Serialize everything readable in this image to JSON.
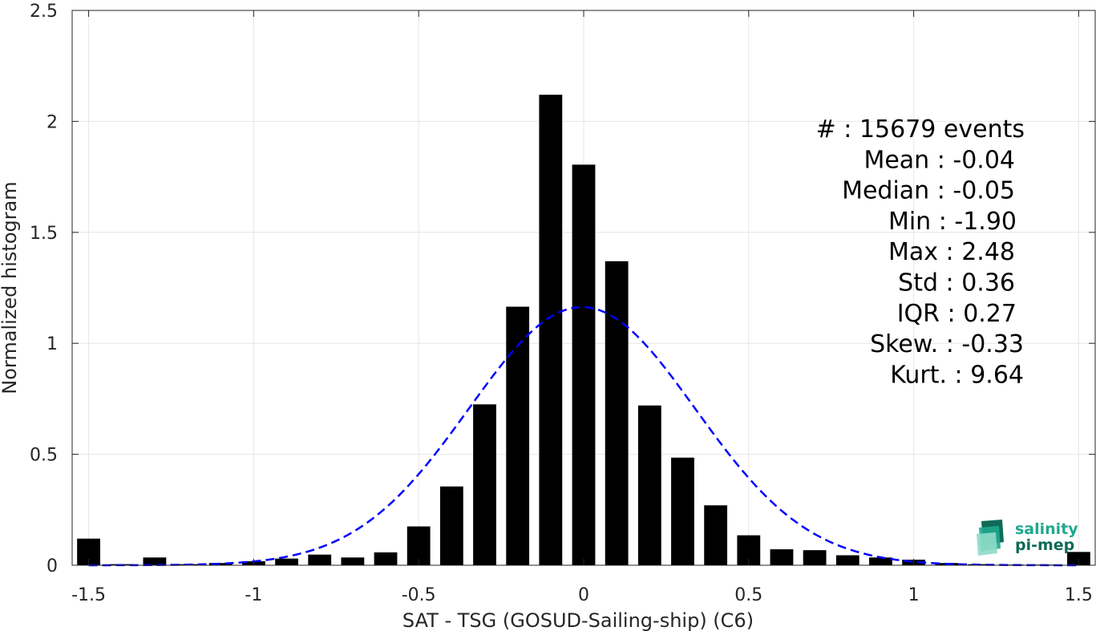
{
  "chart_data": {
    "type": "bar",
    "xlabel": "SAT - TSG (GOSUD-Sailing-ship) (C6)",
    "ylabel": "Normalized histogram",
    "xlim": [
      -1.55,
      1.55
    ],
    "ylim": [
      0,
      2.5
    ],
    "xticks": [
      -1.5,
      -1,
      -0.5,
      0,
      0.5,
      1,
      1.5
    ],
    "xtick_labels": [
      "-1.5",
      "-1",
      "-0.5",
      "0",
      "0.5",
      "1",
      "1.5"
    ],
    "yticks": [
      0,
      0.5,
      1,
      1.5,
      2,
      2.5
    ],
    "ytick_labels": [
      "0",
      "0.5",
      "1",
      "1.5",
      "2",
      "2.5"
    ],
    "grid": true,
    "bar_width": 0.07,
    "bars": [
      {
        "x": -1.5,
        "y": 0.12
      },
      {
        "x": -1.4,
        "y": 0.005
      },
      {
        "x": -1.3,
        "y": 0.035
      },
      {
        "x": -1.2,
        "y": 0.005
      },
      {
        "x": -1.1,
        "y": 0.01
      },
      {
        "x": -1.0,
        "y": 0.018
      },
      {
        "x": -0.9,
        "y": 0.03
      },
      {
        "x": -0.8,
        "y": 0.048
      },
      {
        "x": -0.7,
        "y": 0.035
      },
      {
        "x": -0.6,
        "y": 0.058
      },
      {
        "x": -0.5,
        "y": 0.175
      },
      {
        "x": -0.4,
        "y": 0.355
      },
      {
        "x": -0.3,
        "y": 0.725
      },
      {
        "x": -0.2,
        "y": 1.165
      },
      {
        "x": -0.1,
        "y": 2.12
      },
      {
        "x": 0.0,
        "y": 1.805
      },
      {
        "x": 0.1,
        "y": 1.37
      },
      {
        "x": 0.2,
        "y": 0.72
      },
      {
        "x": 0.3,
        "y": 0.485
      },
      {
        "x": 0.4,
        "y": 0.27
      },
      {
        "x": 0.5,
        "y": 0.135
      },
      {
        "x": 0.6,
        "y": 0.072
      },
      {
        "x": 0.7,
        "y": 0.068
      },
      {
        "x": 0.8,
        "y": 0.045
      },
      {
        "x": 0.9,
        "y": 0.035
      },
      {
        "x": 1.0,
        "y": 0.025
      },
      {
        "x": 1.1,
        "y": 0.01
      },
      {
        "x": 1.2,
        "y": 0.005
      },
      {
        "x": 1.3,
        "y": 0.003
      },
      {
        "x": 1.4,
        "y": 0.003
      },
      {
        "x": 1.5,
        "y": 0.06
      }
    ],
    "fit_curve": {
      "style": "dashed",
      "color": "#0000ff",
      "mean": -0.005,
      "std": 0.343,
      "x_range": [
        -1.5,
        1.5
      ]
    },
    "stats": [
      "#  : 15679 events",
      "Mean : -0.04",
      "Median : -0.05",
      "Min : -1.90",
      "Max : 2.48",
      "Std : 0.36",
      "IQR : 0.27",
      "Skew. : -0.33",
      "Kurt. : 9.64"
    ]
  },
  "logo": {
    "line1": "salinity",
    "line2": "pi-mep"
  },
  "colors": {
    "bar": "#000000",
    "grid": "#e6e6e6",
    "axis": "#262626",
    "fit": "#0000ff",
    "logo_text": "#1fa88e",
    "logo_dark": "#0f6b57"
  }
}
